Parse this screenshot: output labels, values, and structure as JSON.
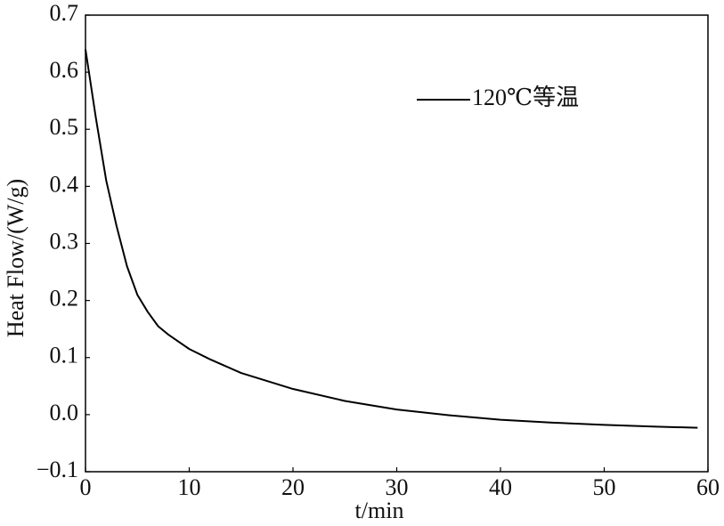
{
  "chart_data": {
    "type": "line",
    "xlabel": "t/min",
    "ylabel": "Heat Flow/(W/g)",
    "x": [
      0,
      1,
      2,
      3,
      4,
      5,
      6,
      7,
      8,
      10,
      12,
      15,
      20,
      25,
      30,
      35,
      40,
      45,
      50,
      55,
      59
    ],
    "series": [
      {
        "name": "120℃等温",
        "color": "#000000",
        "values": [
          0.64,
          0.52,
          0.41,
          0.33,
          0.26,
          0.21,
          0.18,
          0.155,
          0.14,
          0.115,
          0.097,
          0.073,
          0.045,
          0.024,
          0.009,
          -0.001,
          -0.009,
          -0.014,
          -0.018,
          -0.021,
          -0.023
        ]
      }
    ],
    "xlim": [
      0,
      60
    ],
    "xticks": [
      0,
      10,
      20,
      30,
      40,
      50,
      60
    ],
    "ylim": [
      -0.1,
      0.7
    ],
    "yticks": [
      {
        "value": -0.1,
        "label": "−0.1"
      },
      {
        "value": 0,
        "label": "0.0"
      },
      0.1,
      0.2,
      0.3,
      0.4,
      0.5,
      0.6,
      0.7
    ],
    "grid": false,
    "legend": "upper right"
  }
}
